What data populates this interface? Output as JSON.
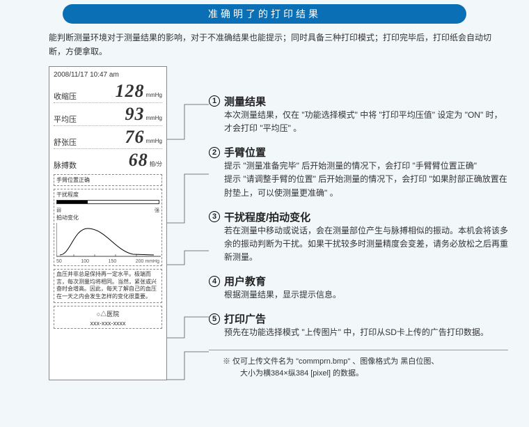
{
  "banner": "准确明了的打印结果",
  "intro": "能判断测量环境对于测量结果的影响，对于不准确结果也能提示；同时具备三种打印模式；打印完毕后，打印纸会自动切断，方便拿取。",
  "receipt": {
    "timestamp": "2008/11/17  10:47 am",
    "rows": [
      {
        "label": "收缩压",
        "value": "128",
        "unit": "mmHg"
      },
      {
        "label": "平均压",
        "value": "93",
        "unit": "mmHg"
      },
      {
        "label": "舒张压",
        "value": "76",
        "unit": "mmHg"
      },
      {
        "label": "脉搏数",
        "value": "68",
        "unit": "拍/分"
      }
    ],
    "armpos": "手臂位置正确",
    "disturb_label": "干扰程度",
    "disturb_pct": 30,
    "ticks": [
      "弱",
      "",
      "",
      "",
      "强"
    ],
    "wave_label": "拍动变化",
    "xticks": [
      "50",
      "100",
      "150",
      "200 mmHg"
    ],
    "edu": "血压并非总是保持再一定水平。极端而言，每次测量均将相同。当然，紧张或兴奋时会增高。因此，每天了解自己的血压在一天之内会发生怎样的变化很重要。",
    "hospital": "○△医院",
    "phone": "xxx-xxx-xxxx"
  },
  "sections": [
    {
      "num": "①",
      "title": "测量结果",
      "body": "本次测量结果，仅在 \"功能选择模式\" 中将 \"打印平均压值\" 设定为 \"ON\" 时，才会打印 \"平均压\" 。"
    },
    {
      "num": "②",
      "title": "手臂位置",
      "body": "提示 \"测量准备完毕\" 后开始测量的情况下，会打印 \"手臂臂位置正确\"\n提示 \"请调整手臂的位置\" 后开始测量的情况下，会打印 \"如果肘部正确放置在肘垫上，可以使测量更准确\" 。"
    },
    {
      "num": "③",
      "title": "干扰程度/拍动变化",
      "body": "若在测量中移动或说话，会在测量部位产生与脉搏相似的振动。本机会将该多余的振动判断为干扰。如果干扰较多时测量精度会变差，请务必放松之后再重新测量。"
    },
    {
      "num": "④",
      "title": "用户教育",
      "body": "根据测量结果，显示提示信息。"
    },
    {
      "num": "⑤",
      "title": "打印广告",
      "body": "预先在功能选择模式 \"上传图片\" 中，打印从SD卡上传的广告打印数据。"
    }
  ],
  "footnote": "※ 仅可上传文件名为 \"commprn.bmp\" 、图像格式为 黑白位图、\n　　 大小为横384×纵384 [pixel] 的数据。",
  "colors": {
    "banner_bg": "#0b6fb6",
    "page_bg": "#f2f7fa"
  }
}
